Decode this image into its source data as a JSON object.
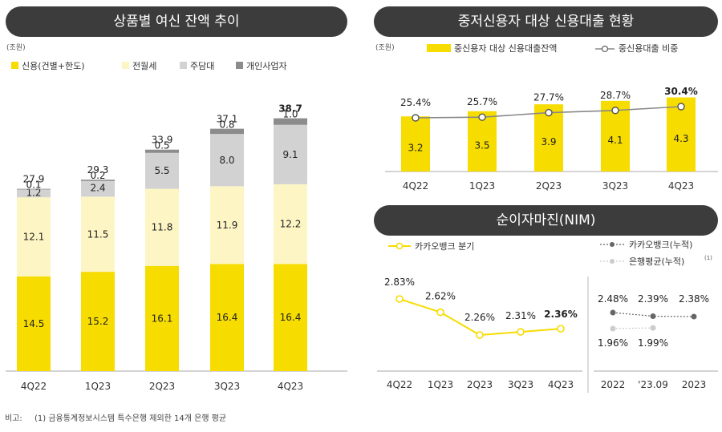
{
  "left": {
    "title": "상품별 여신 잔액 추이",
    "unit": "(조원)",
    "chart_data": {
      "type": "bar",
      "stacked": true,
      "categories": [
        "4Q22",
        "1Q23",
        "2Q23",
        "3Q23",
        "4Q23"
      ],
      "series": [
        {
          "name": "신용(건별+한도)",
          "color": "#f7dc00",
          "values": [
            14.5,
            15.2,
            16.1,
            16.4,
            16.4
          ]
        },
        {
          "name": "전월세",
          "color": "#fdf6c4",
          "values": [
            12.1,
            11.5,
            11.8,
            11.9,
            12.2
          ]
        },
        {
          "name": "주담대",
          "color": "#d2d2d2",
          "values": [
            1.2,
            2.4,
            5.5,
            8.0,
            9.1
          ]
        },
        {
          "name": "개인사업자",
          "color": "#8c8c8c",
          "values": [
            0.1,
            0.2,
            0.5,
            0.8,
            1.0
          ]
        }
      ],
      "totals": [
        "27.9",
        "29.3",
        "33.9",
        "37.1",
        "38.7"
      ],
      "legend_position": "top-left"
    }
  },
  "right_top": {
    "title": "중저신용자 대상 신용대출 현황",
    "unit": "(조원)",
    "chart_data": {
      "type": "bar",
      "categories": [
        "4Q22",
        "1Q23",
        "2Q23",
        "3Q23",
        "4Q23"
      ],
      "bars": {
        "name": "중신용자 대상 신용대출잔액",
        "color": "#f7dc00",
        "values": [
          3.2,
          3.5,
          3.9,
          4.1,
          4.3
        ]
      },
      "line": {
        "name": "중신용대출 비중",
        "color": "#888888",
        "values": [
          25.4,
          25.7,
          27.7,
          28.7,
          30.4
        ],
        "labels": [
          "25.4%",
          "25.7%",
          "27.7%",
          "28.7%",
          "30.4%"
        ]
      },
      "legend_position": "top-right"
    }
  },
  "right_bottom": {
    "title": "순이자마진(NIM)",
    "chart_data": {
      "type": "line",
      "quarterly": {
        "name": "카카오뱅크 분기",
        "color": "#f7dc00",
        "categories": [
          "4Q22",
          "1Q23",
          "2Q23",
          "3Q23",
          "4Q23"
        ],
        "values": [
          2.83,
          2.62,
          2.26,
          2.31,
          2.36
        ],
        "labels": [
          "2.83%",
          "2.62%",
          "2.26%",
          "2.31%",
          "2.36%"
        ]
      },
      "cumulative": {
        "categories": [
          "2022",
          "'23.09",
          "2023"
        ],
        "series": [
          {
            "name": "카카오뱅크(누적)",
            "color": "#666666",
            "values": [
              2.48,
              2.39,
              2.38
            ],
            "labels": [
              "2.48%",
              "2.39%",
              "2.38%"
            ]
          },
          {
            "name": "은행평균(누적)",
            "superscript": "(1)",
            "color": "#cccccc",
            "values": [
              1.96,
              1.99
            ],
            "labels": [
              "1.96%",
              "1.99%"
            ]
          }
        ]
      }
    }
  },
  "footnote": {
    "label": "비고:",
    "text": "(1) 금융통계정보시스템 특수은행 제외한 14개 은행 평균"
  }
}
